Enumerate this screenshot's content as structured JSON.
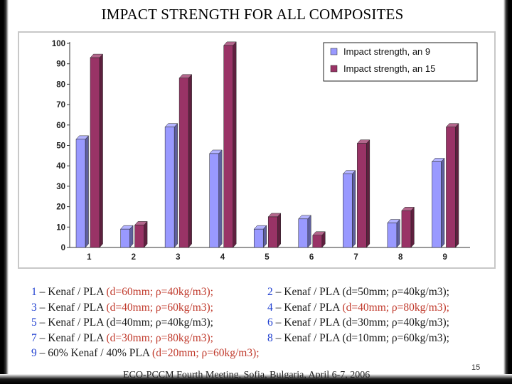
{
  "title": "IMPACT STRENGTH FOR ALL COMPOSITES",
  "colors": {
    "series1": "#9999ff",
    "series2": "#993366",
    "accent_blue": "#1f3fd0",
    "accent_red": "#c0392b"
  },
  "chart_data": {
    "type": "bar",
    "categories": [
      "1",
      "2",
      "3",
      "4",
      "5",
      "6",
      "7",
      "8",
      "9"
    ],
    "series": [
      {
        "name": "Impact strength, an 9",
        "values": [
          53,
          9,
          59,
          46,
          9,
          14,
          36,
          12,
          42
        ]
      },
      {
        "name": "Impact strength, an 15",
        "values": [
          93,
          11,
          83,
          99,
          15,
          6,
          51,
          18,
          59
        ]
      }
    ],
    "yticks": [
      "0",
      "10",
      "20",
      "30",
      "40",
      "50",
      "60",
      "70",
      "80",
      "90",
      "100"
    ],
    "ylim": [
      0,
      100
    ],
    "legend_position": "top-right",
    "grid": false,
    "style": "3d-bars"
  },
  "descriptions": [
    {
      "a": {
        "num": "1",
        "mat": " – Kenaf / PLA  ",
        "spec": "(d=60mm; ρ=40kg/m3);"
      },
      "b": {
        "num": "2",
        "mat": " – Kenaf / PLA  ",
        "spec": "(d=50mm; ρ=40kg/m3);"
      }
    },
    {
      "a": {
        "num": "3",
        "mat": " – Kenaf / PLA  ",
        "spec": "(d=40mm; ρ=60kg/m3);"
      },
      "b": {
        "num": "4",
        "mat": " – Kenaf / PLA  ",
        "spec": "(d=40mm; ρ=80kg/m3);"
      }
    },
    {
      "a": {
        "num": "5",
        "mat": " – Kenaf / PLA  ",
        "spec": "(d=40mm; ρ=40kg/m3);"
      },
      "b": {
        "num": "6",
        "mat": " – Kenaf / PLA  ",
        "spec": "(d=30mm; ρ=40kg/m3);"
      }
    },
    {
      "a": {
        "num": "7",
        "mat": " – Kenaf / PLA  ",
        "spec": "(d=30mm; ρ=80kg/m3);"
      },
      "b": {
        "num": "8",
        "mat": " – Kenaf / PLA  ",
        "spec": "(d=10mm; ρ=60kg/m3);"
      }
    },
    {
      "a": {
        "num": "9",
        "mat": " – 60% Kenaf / 40% PLA  ",
        "spec": "(d=20mm; ρ=60kg/m3);"
      }
    }
  ],
  "footer": "ECO-PCCM Fourth Meeting, Sofia, Bulgaria, April 6-7, 2006",
  "page_number": "15"
}
